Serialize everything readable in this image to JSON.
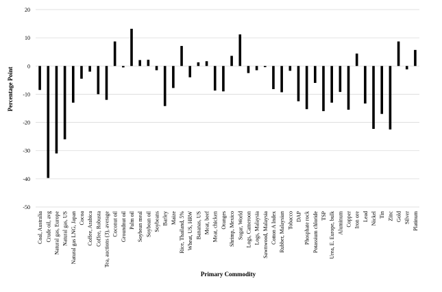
{
  "chart_data": {
    "type": "bar",
    "title": "",
    "xlabel": "Primary Commodity",
    "ylabel": "Percentage Point",
    "ylim": [
      -50,
      20
    ],
    "yticks": [
      20,
      10,
      0,
      -10,
      -20,
      -30,
      -40,
      -50
    ],
    "grid": true,
    "bar_color": "#000000",
    "categories": [
      "Coal, Australia",
      "Crude oil, avg",
      "Natural gas, Europe",
      "Natural gas, US",
      "Natural gas LNG, Japan",
      "Cocoa",
      "Coffee, Arabica",
      "Coffee, Robusta",
      "Tea, auctions (3), average",
      "Coconut oil",
      "Groundnut oil",
      "Palm oil",
      "Soybean meal",
      "Soybean oil",
      "Soybeans",
      "Barley",
      "Maize",
      "Rice, Thailand, 5%",
      "Wheat, US, HRW",
      "Bananas, US",
      "Meat, beef",
      "Meat, chicken",
      "Oranges",
      "Shrimp, Mexico",
      "Sugar, World",
      "Logs, Cameroon",
      "Logs, Malaysia",
      "Sawnwood, Malaysia",
      "Cotton A Index",
      "Rubber, Malaysian",
      "Tobacco",
      "DAP",
      "Phosphate rock",
      "Potassium chloride",
      "TSP",
      "Urea, E. Europe, bulk",
      "Aluminum",
      "Copper",
      "Iron ore",
      "Lead",
      "Nickel",
      "Tin",
      "Zinc",
      "Gold",
      "Silver",
      "Platinum"
    ],
    "values": [
      -8.5,
      -39.7,
      -31,
      -26,
      -13,
      -4.5,
      -2,
      -10,
      -12,
      8.7,
      -0.5,
      13.2,
      2.1,
      2.2,
      -1.5,
      -14.2,
      -7.8,
      7.1,
      -4,
      1.3,
      1.7,
      -8.7,
      -9,
      3.6,
      11.2,
      -2.5,
      -1.5,
      -0.4,
      -8.2,
      -9.3,
      -1.7,
      -12.5,
      -15.3,
      -6,
      -16,
      -13,
      -9.2,
      -15.5,
      4.4,
      -13.3,
      -22.3,
      -17,
      -22.5,
      8.7,
      -1.2,
      5.7
    ]
  }
}
